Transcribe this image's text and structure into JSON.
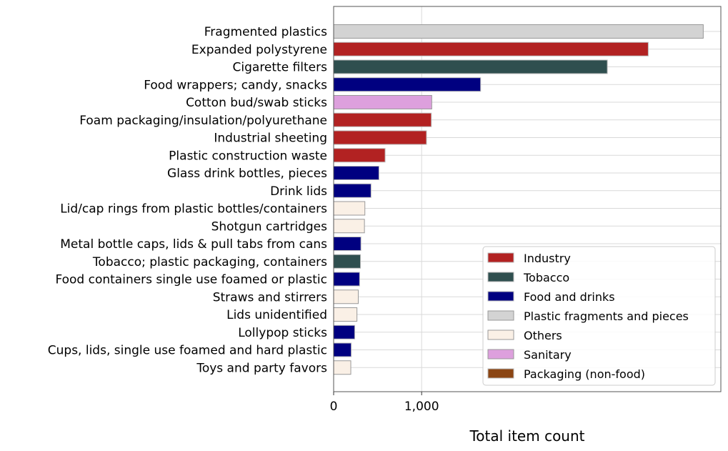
{
  "chart_data": {
    "type": "bar",
    "orientation": "horizontal",
    "xlabel": "Total item count",
    "xticks": [
      0,
      1000
    ],
    "xtick_labels": [
      "0",
      "1,000"
    ],
    "xlim": [
      0,
      4400
    ],
    "grid": true,
    "legend_placement": "lower-right",
    "categories": [
      "Fragmented plastics",
      "Expanded polystyrene",
      "Cigarette filters",
      "Food wrappers; candy, snacks",
      "Cotton bud/swab sticks",
      "Foam packaging/insulation/polyurethane",
      "Industrial sheeting",
      "Plastic construction waste",
      "Glass drink bottles, pieces",
      "Drink lids",
      "Lid/cap rings from plastic bottles/containers",
      "Shotgun cartridges",
      "Metal bottle caps, lids & pull tabs from cans",
      "Tobacco; plastic packaging, containers",
      "Food containers single use foamed or plastic",
      "Straws and stirrers",
      "Lids unidentified",
      "Lollypop sticks",
      "Cups, lids, single use foamed and hard plastic",
      "Toys and party favors"
    ],
    "values": [
      4200,
      3575,
      3110,
      1670,
      1115,
      1110,
      1055,
      585,
      515,
      425,
      355,
      350,
      310,
      305,
      295,
      280,
      265,
      240,
      200,
      195
    ],
    "groups": [
      "Plastic fragments and pieces",
      "Industry",
      "Tobacco",
      "Food and drinks",
      "Sanitary",
      "Industry",
      "Industry",
      "Industry",
      "Food and drinks",
      "Food and drinks",
      "Others",
      "Others",
      "Food and drinks",
      "Tobacco",
      "Food and drinks",
      "Others",
      "Others",
      "Food and drinks",
      "Food and drinks",
      "Others"
    ],
    "legend": [
      {
        "name": "Industry",
        "color": "#b22222"
      },
      {
        "name": "Tobacco",
        "color": "#2f4f4f"
      },
      {
        "name": "Food and drinks",
        "color": "#000080"
      },
      {
        "name": "Plastic fragments and pieces",
        "color": "#d3d3d3"
      },
      {
        "name": "Others",
        "color": "#faf0e6"
      },
      {
        "name": "Sanitary",
        "color": "#dda0dd"
      },
      {
        "name": "Packaging (non-food)",
        "color": "#8b4513"
      }
    ]
  }
}
